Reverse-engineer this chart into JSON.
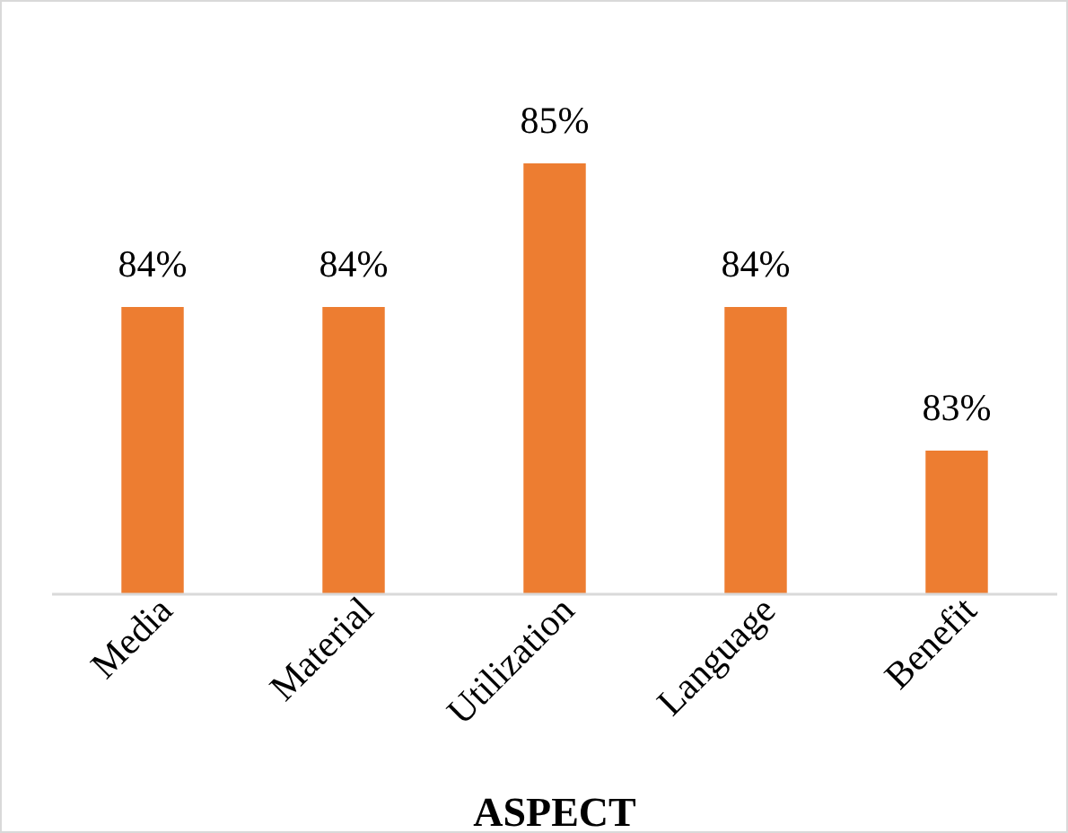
{
  "chart_data": {
    "type": "bar",
    "xlabel": "ASPECT",
    "categories": [
      "Media",
      "Material",
      "Utilization",
      "Language",
      "Benefit"
    ],
    "values": [
      84,
      84,
      85,
      84,
      83
    ],
    "value_labels": [
      "84%",
      "84%",
      "85%",
      "84%",
      "83%"
    ],
    "color": "#ed7d31",
    "ylim": [
      82,
      85
    ],
    "tick_labels": "x"
  }
}
